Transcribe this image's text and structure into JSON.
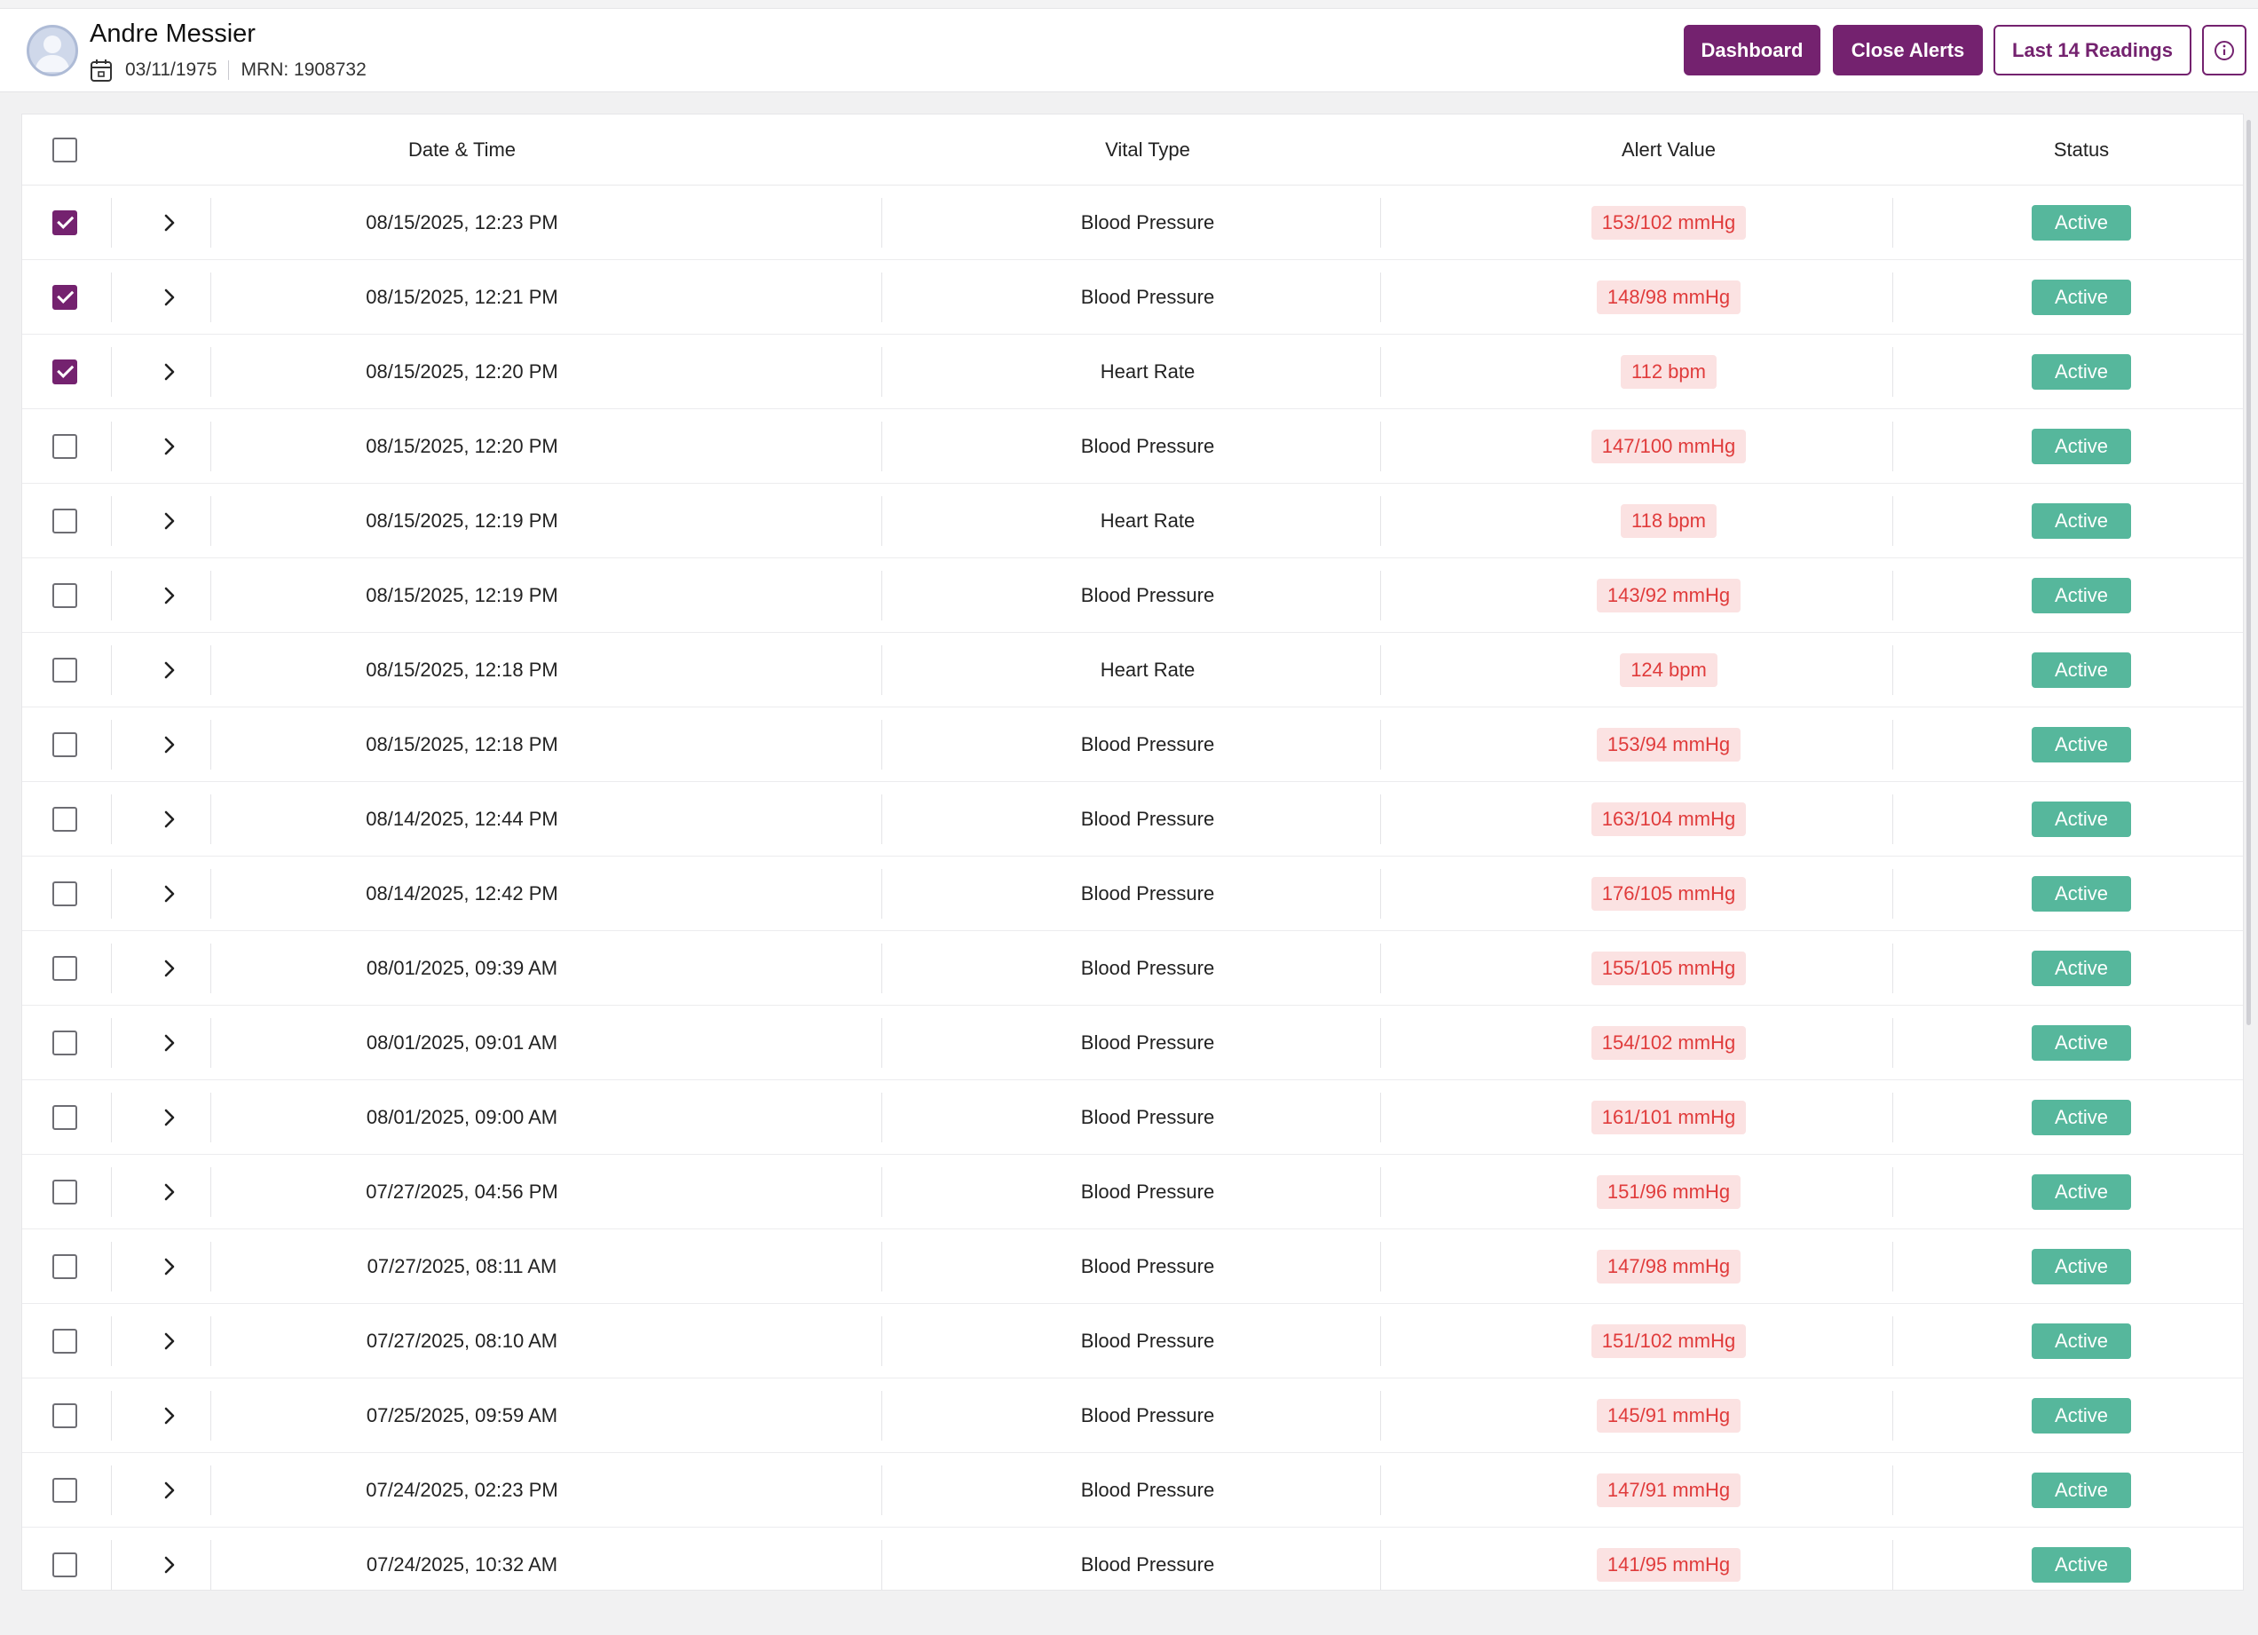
{
  "patient": {
    "name": "Andre Messier",
    "dob": "03/11/1975",
    "mrn": "MRN: 1908732"
  },
  "actions": {
    "dashboard": "Dashboard",
    "close_alerts": "Close Alerts",
    "last_readings": "Last 14 Readings"
  },
  "colors": {
    "brand": "#74226f",
    "status_active": "#56b79c",
    "alert_text": "#e03b3b",
    "alert_bg": "#fbe2e2"
  },
  "table": {
    "columns": [
      "Date & Time",
      "Vital Type",
      "Alert Value",
      "Status"
    ],
    "rows": [
      {
        "checked": true,
        "datetime": "08/15/2025, 12:23 PM",
        "vital": "Blood Pressure",
        "value": "153/102 mmHg",
        "status": "Active"
      },
      {
        "checked": true,
        "datetime": "08/15/2025, 12:21 PM",
        "vital": "Blood Pressure",
        "value": "148/98 mmHg",
        "status": "Active"
      },
      {
        "checked": true,
        "datetime": "08/15/2025, 12:20 PM",
        "vital": "Heart Rate",
        "value": "112 bpm",
        "status": "Active"
      },
      {
        "checked": false,
        "datetime": "08/15/2025, 12:20 PM",
        "vital": "Blood Pressure",
        "value": "147/100 mmHg",
        "status": "Active"
      },
      {
        "checked": false,
        "datetime": "08/15/2025, 12:19 PM",
        "vital": "Heart Rate",
        "value": "118 bpm",
        "status": "Active"
      },
      {
        "checked": false,
        "datetime": "08/15/2025, 12:19 PM",
        "vital": "Blood Pressure",
        "value": "143/92 mmHg",
        "status": "Active"
      },
      {
        "checked": false,
        "datetime": "08/15/2025, 12:18 PM",
        "vital": "Heart Rate",
        "value": "124 bpm",
        "status": "Active"
      },
      {
        "checked": false,
        "datetime": "08/15/2025, 12:18 PM",
        "vital": "Blood Pressure",
        "value": "153/94 mmHg",
        "status": "Active"
      },
      {
        "checked": false,
        "datetime": "08/14/2025, 12:44 PM",
        "vital": "Blood Pressure",
        "value": "163/104 mmHg",
        "status": "Active"
      },
      {
        "checked": false,
        "datetime": "08/14/2025, 12:42 PM",
        "vital": "Blood Pressure",
        "value": "176/105 mmHg",
        "status": "Active"
      },
      {
        "checked": false,
        "datetime": "08/01/2025, 09:39 AM",
        "vital": "Blood Pressure",
        "value": "155/105 mmHg",
        "status": "Active"
      },
      {
        "checked": false,
        "datetime": "08/01/2025, 09:01 AM",
        "vital": "Blood Pressure",
        "value": "154/102 mmHg",
        "status": "Active"
      },
      {
        "checked": false,
        "datetime": "08/01/2025, 09:00 AM",
        "vital": "Blood Pressure",
        "value": "161/101 mmHg",
        "status": "Active"
      },
      {
        "checked": false,
        "datetime": "07/27/2025, 04:56 PM",
        "vital": "Blood Pressure",
        "value": "151/96 mmHg",
        "status": "Active"
      },
      {
        "checked": false,
        "datetime": "07/27/2025, 08:11 AM",
        "vital": "Blood Pressure",
        "value": "147/98 mmHg",
        "status": "Active"
      },
      {
        "checked": false,
        "datetime": "07/27/2025, 08:10 AM",
        "vital": "Blood Pressure",
        "value": "151/102 mmHg",
        "status": "Active"
      },
      {
        "checked": false,
        "datetime": "07/25/2025, 09:59 AM",
        "vital": "Blood Pressure",
        "value": "145/91 mmHg",
        "status": "Active"
      },
      {
        "checked": false,
        "datetime": "07/24/2025, 02:23 PM",
        "vital": "Blood Pressure",
        "value": "147/91 mmHg",
        "status": "Active"
      },
      {
        "checked": false,
        "datetime": "07/24/2025, 10:32 AM",
        "vital": "Blood Pressure",
        "value": "141/95 mmHg",
        "status": "Active"
      }
    ]
  }
}
